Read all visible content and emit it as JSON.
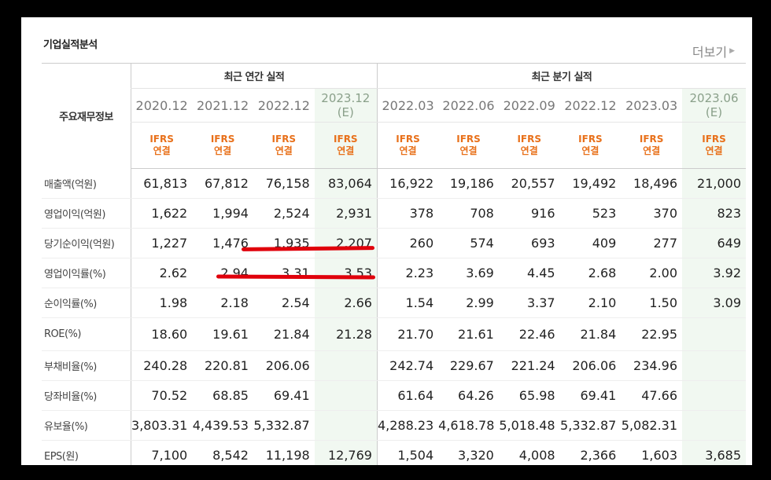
{
  "section_title": "기업실적분석",
  "more_label": "더보기",
  "header": {
    "row_label_header": "주요재무정보",
    "annual_group": "최근 연간 실적",
    "quarterly_group": "최근 분기 실적",
    "annual_periods": [
      {
        "date": "2020.12",
        "est": ""
      },
      {
        "date": "2021.12",
        "est": ""
      },
      {
        "date": "2022.12",
        "est": ""
      },
      {
        "date": "2023.12",
        "est": "(E)"
      }
    ],
    "quarter_periods": [
      {
        "date": "2022.03",
        "est": ""
      },
      {
        "date": "2022.06",
        "est": ""
      },
      {
        "date": "2022.09",
        "est": ""
      },
      {
        "date": "2022.12",
        "est": ""
      },
      {
        "date": "2023.03",
        "est": ""
      },
      {
        "date": "2023.06",
        "est": "(E)"
      }
    ],
    "ifrs_line1": "IFRS",
    "ifrs_line2": "연결"
  },
  "rows": [
    {
      "label": "매출액(억원)",
      "values": [
        "61,813",
        "67,812",
        "76,158",
        "83,064",
        "16,922",
        "19,186",
        "20,557",
        "19,492",
        "18,496",
        "21,000"
      ]
    },
    {
      "label": "영업이익(억원)",
      "values": [
        "1,622",
        "1,994",
        "2,524",
        "2,931",
        "378",
        "708",
        "916",
        "523",
        "370",
        "823"
      ]
    },
    {
      "label": "당기순이익(억원)",
      "values": [
        "1,227",
        "1,476",
        "1,935",
        "2,207",
        "260",
        "574",
        "693",
        "409",
        "277",
        "649"
      ]
    },
    {
      "label": "영업이익률(%)",
      "values": [
        "2.62",
        "2.94",
        "3.31",
        "3.53",
        "2.23",
        "3.69",
        "4.45",
        "2.68",
        "2.00",
        "3.92"
      ]
    },
    {
      "label": "순이익률(%)",
      "values": [
        "1.98",
        "2.18",
        "2.54",
        "2.66",
        "1.54",
        "2.99",
        "3.37",
        "2.10",
        "1.50",
        "3.09"
      ]
    },
    {
      "label": "ROE(%)",
      "values": [
        "18.60",
        "19.61",
        "21.84",
        "21.28",
        "21.70",
        "21.61",
        "22.46",
        "21.84",
        "22.95",
        ""
      ]
    },
    {
      "label": "부채비율(%)",
      "values": [
        "240.28",
        "220.81",
        "206.06",
        "",
        "242.74",
        "229.67",
        "221.24",
        "206.06",
        "234.96",
        ""
      ]
    },
    {
      "label": "당좌비율(%)",
      "values": [
        "70.52",
        "68.85",
        "69.41",
        "",
        "61.64",
        "64.26",
        "65.98",
        "69.41",
        "47.66",
        ""
      ]
    },
    {
      "label": "유보율(%)",
      "values": [
        "3,803.31",
        "4,439.53",
        "5,332.87",
        "",
        "4,288.23",
        "4,618.78",
        "5,018.48",
        "5,332.87",
        "5,082.31",
        ""
      ]
    },
    {
      "label": "EPS(원)",
      "values": [
        "7,100",
        "8,542",
        "11,198",
        "12,769",
        "1,504",
        "3,320",
        "4,008",
        "2,366",
        "1,603",
        "3,685"
      ]
    }
  ],
  "accent_colors": {
    "ifrs": "#e8701a",
    "estimate_bg": "#f1f8f1",
    "annotation": "#e0000b"
  }
}
